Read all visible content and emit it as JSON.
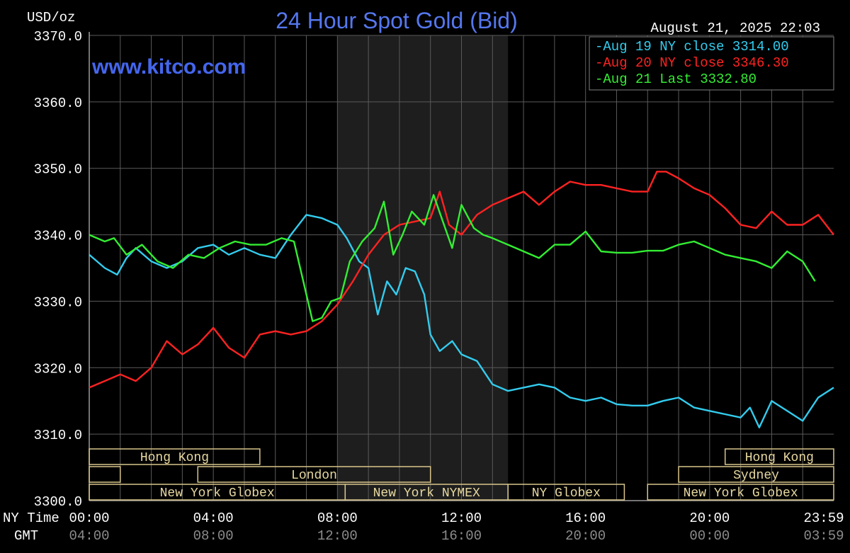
{
  "chart_data": {
    "type": "line",
    "title": "24 Hour Spot Gold (Bid)",
    "ylabel": "USD/oz",
    "website": "www.kitco.com",
    "timestamp": "August 21, 2025 22:03",
    "ylim": [
      3300,
      3370
    ],
    "yticks": [
      "3370.0",
      "3360.0",
      "3350.0",
      "3340.0",
      "3330.0",
      "3320.0",
      "3310.0",
      "3300.0"
    ],
    "ytick_values": [
      3370,
      3360,
      3350,
      3340,
      3330,
      3320,
      3310,
      3300
    ],
    "x_row_labels": {
      "ny_time": "NY Time",
      "gmt": "GMT"
    },
    "xticks_ny": [
      "00:00",
      "04:00",
      "08:00",
      "12:00",
      "16:00",
      "20:00",
      "23:59"
    ],
    "xticks_gmt": [
      "04:00",
      "08:00",
      "12:00",
      "16:00",
      "20:00",
      "00:00",
      "03:59"
    ],
    "xtick_hours": [
      0,
      4,
      8,
      12,
      16,
      20,
      24
    ],
    "grid": true,
    "legend_position": "top-right",
    "shaded_hours": [
      8,
      13.5
    ],
    "sessions": [
      {
        "label": "Hong Kong",
        "start": 0,
        "end": 5.5,
        "row": 0
      },
      {
        "label": "Hong Kong",
        "start": 20.5,
        "end": 24,
        "row": 0
      },
      {
        "label": "",
        "start": 0,
        "end": 1,
        "row": 1
      },
      {
        "label": "London",
        "start": 3.5,
        "end": 11,
        "row": 1
      },
      {
        "label": "Sydney",
        "start": 19,
        "end": 24,
        "row": 1
      },
      {
        "label": "New York Globex",
        "start": 0,
        "end": 8.25,
        "row": 2
      },
      {
        "label": "New York NYMEX",
        "start": 8.25,
        "end": 13.5,
        "row": 2
      },
      {
        "label": "NY Globex",
        "start": 13.5,
        "end": 17.25,
        "row": 2
      },
      {
        "label": "New York Globex",
        "start": 18,
        "end": 24,
        "row": 2
      }
    ],
    "series": [
      {
        "name": "Aug 19 NY close 3314.00",
        "color": "#33ccee",
        "x": [
          0,
          0.5,
          0.9,
          1.2,
          1.5,
          2.0,
          2.5,
          3.0,
          3.5,
          4.0,
          4.5,
          5.0,
          5.5,
          6.0,
          6.5,
          7.0,
          7.5,
          8.0,
          8.3,
          8.7,
          9.0,
          9.3,
          9.6,
          9.9,
          10.2,
          10.5,
          10.8,
          11.0,
          11.3,
          11.7,
          12.0,
          12.5,
          13.0,
          13.5,
          14.0,
          14.5,
          15.0,
          15.5,
          16.0,
          16.5,
          17.0,
          17.5,
          18.0,
          18.5,
          19.0,
          19.5,
          20.0,
          20.5,
          21.0,
          21.3,
          21.6,
          22.0,
          22.5,
          23.0,
          23.5,
          24.0
        ],
        "y": [
          3337,
          3335,
          3334,
          3336.5,
          3338,
          3336,
          3335,
          3336,
          3338,
          3338.5,
          3337,
          3338,
          3337,
          3336.5,
          3340,
          3343,
          3342.5,
          3341.5,
          3339.5,
          3336,
          3335,
          3328,
          3333,
          3331,
          3335,
          3334.5,
          3331,
          3325,
          3322.5,
          3324,
          3322,
          3321,
          3317.5,
          3316.5,
          3317,
          3317.5,
          3317,
          3315.5,
          3315,
          3315.5,
          3314.5,
          3314.3,
          3314.3,
          3315,
          3315.5,
          3314,
          3313.5,
          3313,
          3312.5,
          3314,
          3311,
          3315,
          3313.5,
          3312,
          3315.5,
          3317
        ]
      },
      {
        "name": "Aug 20 NY close 3346.30",
        "color": "#ff2222",
        "x": [
          0,
          0.5,
          1.0,
          1.5,
          2.0,
          2.5,
          3.0,
          3.5,
          4.0,
          4.5,
          5.0,
          5.5,
          6.0,
          6.5,
          7.0,
          7.5,
          8.0,
          8.5,
          9.0,
          9.5,
          10.0,
          10.5,
          11.0,
          11.3,
          11.6,
          12.0,
          12.5,
          13.0,
          13.5,
          14.0,
          14.5,
          15.0,
          15.5,
          16.0,
          16.5,
          17.0,
          17.5,
          18.0,
          18.3,
          18.6,
          19.0,
          19.5,
          20.0,
          20.5,
          21.0,
          21.5,
          22.0,
          22.5,
          23.0,
          23.5,
          24.0
        ],
        "y": [
          3317,
          3318,
          3319,
          3318,
          3320,
          3324,
          3322,
          3323.5,
          3326,
          3323,
          3321.5,
          3325,
          3325.5,
          3325,
          3325.5,
          3327,
          3329.5,
          3333,
          3337,
          3340,
          3341.5,
          3342,
          3342.5,
          3346.5,
          3341.5,
          3340,
          3343,
          3344.5,
          3345.5,
          3346.5,
          3344.5,
          3346.5,
          3348,
          3347.5,
          3347.5,
          3347,
          3346.5,
          3346.5,
          3349.5,
          3349.5,
          3348.5,
          3347,
          3346,
          3344,
          3341.5,
          3341,
          3343.5,
          3341.5,
          3341.5,
          3343,
          3340
        ]
      },
      {
        "name": "Aug 21 Last 3332.80",
        "color": "#33ee33",
        "x": [
          0,
          0.5,
          0.8,
          1.2,
          1.7,
          2.2,
          2.7,
          3.2,
          3.7,
          4.2,
          4.7,
          5.2,
          5.7,
          6.2,
          6.6,
          6.9,
          7.2,
          7.5,
          7.8,
          8.1,
          8.4,
          8.8,
          9.2,
          9.5,
          9.8,
          10.1,
          10.4,
          10.8,
          11.1,
          11.4,
          11.7,
          12.0,
          12.4,
          12.7,
          13.0,
          13.5,
          14.0,
          14.5,
          15.0,
          15.5,
          16.0,
          16.5,
          17.0,
          17.5,
          18.0,
          18.5,
          19.0,
          19.5,
          20.0,
          20.5,
          21.0,
          21.5,
          22.0,
          22.5,
          23.0,
          23.4
        ],
        "y": [
          3340,
          3339,
          3339.5,
          3337,
          3338.5,
          3336,
          3335,
          3337,
          3336.5,
          3338,
          3339,
          3338.5,
          3338.5,
          3339.5,
          3339,
          3333,
          3327,
          3327.5,
          3330,
          3330.5,
          3336,
          3339,
          3341,
          3345,
          3337,
          3340,
          3343.5,
          3341.5,
          3346,
          3342,
          3338,
          3344.5,
          3341,
          3340,
          3339.5,
          3338.5,
          3337.5,
          3336.5,
          3338.5,
          3338.5,
          3340.5,
          3337.5,
          3337.3,
          3337.3,
          3337.6,
          3337.6,
          3338.5,
          3339,
          3338,
          3337,
          3336.5,
          3336,
          3335,
          3337.5,
          3336,
          3333
        ]
      }
    ]
  }
}
